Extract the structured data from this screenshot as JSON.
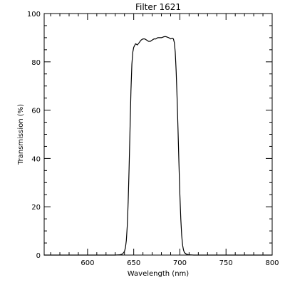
{
  "chart_data": {
    "type": "line",
    "title": "Filter  1621",
    "xlabel": "Wavelength (nm)",
    "ylabel": "Transmission (%)",
    "xlim": [
      553,
      800
    ],
    "ylim": [
      0,
      100
    ],
    "grid": false,
    "x_ticks": [
      {
        "value": 600,
        "label": "600"
      },
      {
        "value": 650,
        "label": "650"
      },
      {
        "value": 700,
        "label": "700"
      },
      {
        "value": 750,
        "label": "750"
      },
      {
        "value": 800,
        "label": "800"
      }
    ],
    "y_ticks": [
      {
        "value": 0,
        "label": "0"
      },
      {
        "value": 20,
        "label": "20"
      },
      {
        "value": 40,
        "label": "40"
      },
      {
        "value": 60,
        "label": "60"
      },
      {
        "value": 80,
        "label": "80"
      },
      {
        "value": 100,
        "label": "100"
      }
    ],
    "x_minor_step": 10,
    "y_minor_step": 5,
    "series": [
      {
        "color": "#000000",
        "points": [
          [
            553,
            0
          ],
          [
            600,
            0
          ],
          [
            630,
            0
          ],
          [
            635,
            0.1
          ],
          [
            638,
            0.5
          ],
          [
            640,
            1.5
          ],
          [
            641,
            3
          ],
          [
            642,
            6
          ],
          [
            643,
            12
          ],
          [
            644,
            22
          ],
          [
            645,
            36
          ],
          [
            646,
            52
          ],
          [
            647,
            68
          ],
          [
            648,
            79
          ],
          [
            649,
            84
          ],
          [
            650,
            86
          ],
          [
            652,
            87.5
          ],
          [
            654,
            87
          ],
          [
            656,
            88
          ],
          [
            658,
            89
          ],
          [
            660,
            89.5
          ],
          [
            662,
            89.5
          ],
          [
            664,
            89
          ],
          [
            666,
            88.5
          ],
          [
            668,
            88.5
          ],
          [
            670,
            89
          ],
          [
            672,
            89.5
          ],
          [
            674,
            89.5
          ],
          [
            676,
            90
          ],
          [
            678,
            90
          ],
          [
            680,
            90
          ],
          [
            682,
            90.3
          ],
          [
            684,
            90.5
          ],
          [
            686,
            90.3
          ],
          [
            688,
            90
          ],
          [
            690,
            89.5
          ],
          [
            692,
            89.8
          ],
          [
            693,
            89.5
          ],
          [
            694,
            88
          ],
          [
            695,
            84
          ],
          [
            696,
            76
          ],
          [
            697,
            65
          ],
          [
            698,
            52
          ],
          [
            699,
            38
          ],
          [
            700,
            25
          ],
          [
            701,
            15
          ],
          [
            702,
            8
          ],
          [
            703,
            4
          ],
          [
            704,
            2
          ],
          [
            705,
            1
          ],
          [
            707,
            0.4
          ],
          [
            710,
            0.1
          ],
          [
            715,
            0
          ],
          [
            800,
            0
          ]
        ]
      }
    ]
  }
}
